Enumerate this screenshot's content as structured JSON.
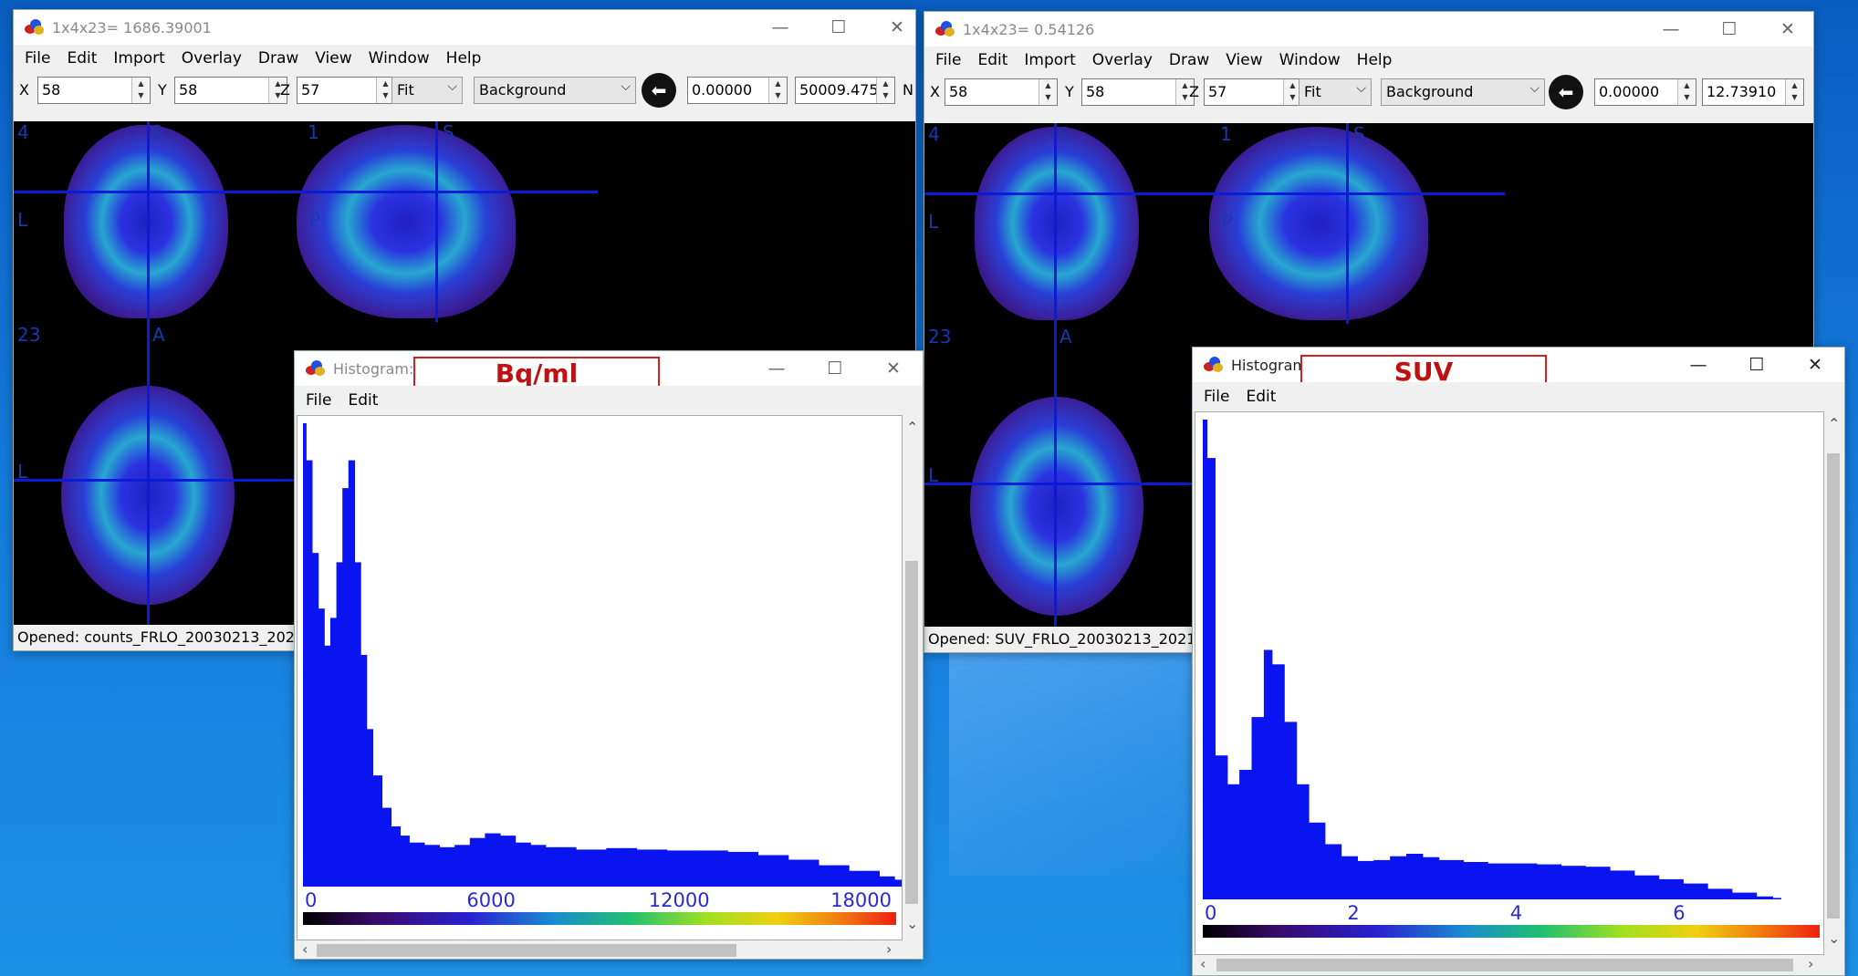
{
  "menu": [
    "File",
    "Edit",
    "Import",
    "Overlay",
    "Draw",
    "View",
    "Window",
    "Help"
  ],
  "left_window": {
    "title": "1x4x23= 1686.39001",
    "x": "58",
    "y": "58",
    "z": "57",
    "zoom": "Fit",
    "layer": "Background",
    "min": "0.00000",
    "max": "50009.4755",
    "extra_label": "N",
    "status": "Opened: counts_FRLO_20030213_20210812",
    "orient_labels": [
      "4",
      "S",
      "1",
      "S",
      "L",
      "P",
      "23",
      "A",
      "L"
    ]
  },
  "right_window": {
    "title": "1x4x23= 0.54126",
    "x": "58",
    "y": "58",
    "z": "57",
    "zoom": "Fit",
    "layer": "Background",
    "min": "0.00000",
    "max": "12.73910",
    "status": "Opened: SUV_FRLO_20030213_20210812.",
    "orient_labels": [
      "4",
      "S",
      "1",
      "S",
      "L",
      "P",
      "23",
      "A",
      "L"
    ]
  },
  "hist_left": {
    "title": "Histogram: c",
    "annotation": "Bq/ml",
    "menu": [
      "File",
      "Edit"
    ]
  },
  "hist_right": {
    "title": "Histogram",
    "annotation": "SUV",
    "menu": [
      "File",
      "Edit"
    ]
  },
  "labels": {
    "x": "X",
    "y": "Y",
    "z": "Z"
  },
  "window_controls": {
    "minimize": "—",
    "maximize": "☐",
    "close": "✕"
  },
  "colors": {
    "histogram_fill": "#0a14f0",
    "annotation_border": "#d42020",
    "desktop": "#1478d8"
  },
  "chart_data": [
    {
      "type": "area",
      "title": "",
      "xlabel": "",
      "ylabel": "",
      "xlim": [
        0,
        19500
      ],
      "xticks": [
        "0",
        "6000",
        "12000",
        "18000"
      ],
      "x": [
        0,
        100,
        300,
        500,
        700,
        900,
        1100,
        1300,
        1500,
        1700,
        1900,
        2100,
        2300,
        2600,
        2900,
        3200,
        3500,
        4000,
        4500,
        5000,
        5500,
        6000,
        6500,
        7000,
        7500,
        8000,
        8500,
        9000,
        9500,
        10000,
        10500,
        11000,
        12000,
        13000,
        14000,
        15000,
        16000,
        17000,
        18000,
        19000,
        19500
      ],
      "values": [
        100,
        92,
        72,
        60,
        52,
        58,
        70,
        86,
        92,
        70,
        50,
        34,
        24,
        17,
        13,
        11,
        9.5,
        9,
        8.5,
        9,
        10.5,
        11.5,
        11,
        9.5,
        9,
        8.5,
        8.5,
        8,
        8,
        8.3,
        8.3,
        8,
        7.8,
        7.8,
        7.5,
        6.8,
        5.8,
        4.6,
        3.4,
        2.2,
        1.5
      ]
    },
    {
      "type": "area",
      "title": "",
      "xlabel": "",
      "ylabel": "",
      "xlim": [
        0,
        7.5
      ],
      "xticks": [
        "0",
        "2",
        "4",
        "6"
      ],
      "x": [
        0,
        0.05,
        0.15,
        0.3,
        0.45,
        0.6,
        0.75,
        0.85,
        1.0,
        1.15,
        1.3,
        1.5,
        1.7,
        1.9,
        2.1,
        2.3,
        2.5,
        2.7,
        2.9,
        3.2,
        3.5,
        3.8,
        4.1,
        4.4,
        4.7,
        5.0,
        5.3,
        5.6,
        5.9,
        6.2,
        6.5,
        6.8,
        7.0,
        7.1
      ],
      "values": [
        100,
        92,
        30,
        24,
        27,
        38,
        52,
        49,
        37,
        24,
        16,
        11.5,
        9,
        8,
        8.2,
        9,
        9.5,
        8.8,
        8.2,
        7.8,
        7.5,
        7.5,
        7.3,
        7,
        6.8,
        6,
        5,
        4.2,
        3.3,
        2.2,
        1.4,
        0.6,
        0.3,
        0
      ]
    }
  ]
}
